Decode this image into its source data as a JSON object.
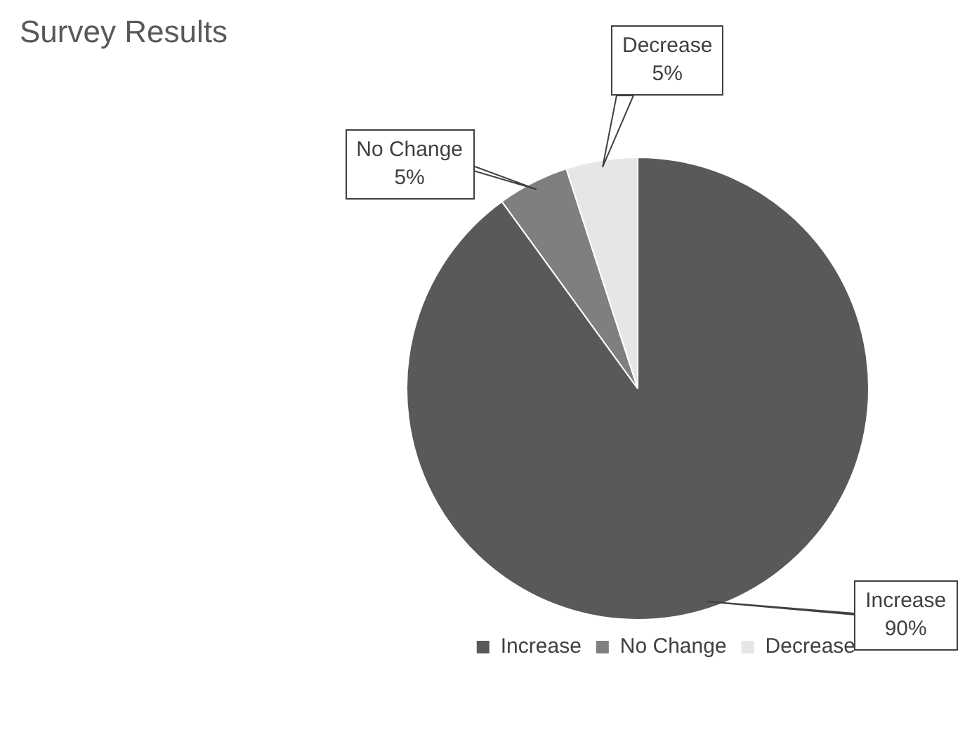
{
  "chart_data": {
    "type": "pie",
    "title": "Survey Results",
    "categories": [
      "Increase",
      "No Change",
      "Decrease"
    ],
    "values": [
      90,
      5,
      5
    ],
    "value_labels": [
      "90%",
      "5%",
      "5%"
    ],
    "colors": [
      "#595959",
      "#7f7f7f",
      "#e6e6e6"
    ],
    "legend": "bottom"
  }
}
